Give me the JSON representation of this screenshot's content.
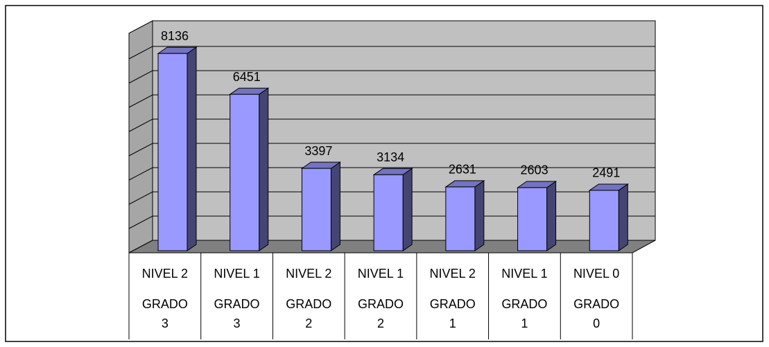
{
  "chart_data": {
    "type": "bar3d",
    "categories": [
      [
        "NIVEL 2",
        "GRADO 3"
      ],
      [
        "NIVEL 1",
        "GRADO 3"
      ],
      [
        "NIVEL 2",
        "GRADO 2"
      ],
      [
        "NIVEL 1",
        "GRADO 2"
      ],
      [
        "NIVEL 2",
        "GRADO 1"
      ],
      [
        "NIVEL 1",
        "GRADO 1"
      ],
      [
        "NIVEL 0",
        "GRADO 0"
      ]
    ],
    "values": [
      8136,
      6451,
      3397,
      3134,
      2631,
      2603,
      2491
    ],
    "color": "#9999ff",
    "ylim": [
      0,
      9000
    ],
    "yticks": [
      0,
      1000,
      2000,
      3000,
      4000,
      5000,
      6000,
      7000,
      8000,
      9000
    ],
    "grid": true
  }
}
